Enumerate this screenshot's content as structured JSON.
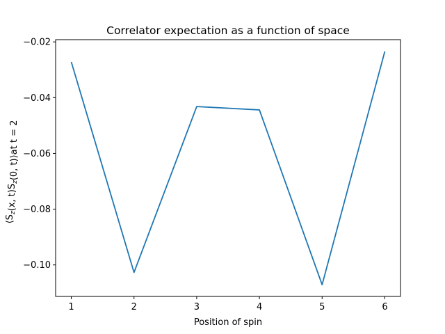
{
  "chart_data": {
    "type": "line",
    "title": "Correlator expectation as a function of space",
    "xlabel": "Position of spin",
    "ylabel": "⟨S_z(x, t)S_z(0, t)⟩at t = 2",
    "x": [
      1,
      2,
      3,
      4,
      5,
      6
    ],
    "series": [
      {
        "values": [
          -0.0272,
          -0.1027,
          -0.0432,
          -0.0444,
          -0.1071,
          -0.0234
        ]
      }
    ],
    "xticks": [
      "1",
      "2",
      "3",
      "4",
      "5",
      "6"
    ],
    "yticks": [
      "-0.02",
      "-0.04",
      "-0.06",
      "-0.08",
      "-0.10"
    ],
    "ytick_values": [
      -0.02,
      -0.04,
      -0.06,
      -0.08,
      -0.1
    ],
    "xlim": [
      0.75,
      6.25
    ],
    "ylim": [
      -0.1113,
      -0.0192
    ],
    "grid": false,
    "colors": {
      "line": "#1f77b4",
      "axes": "#000000"
    }
  }
}
